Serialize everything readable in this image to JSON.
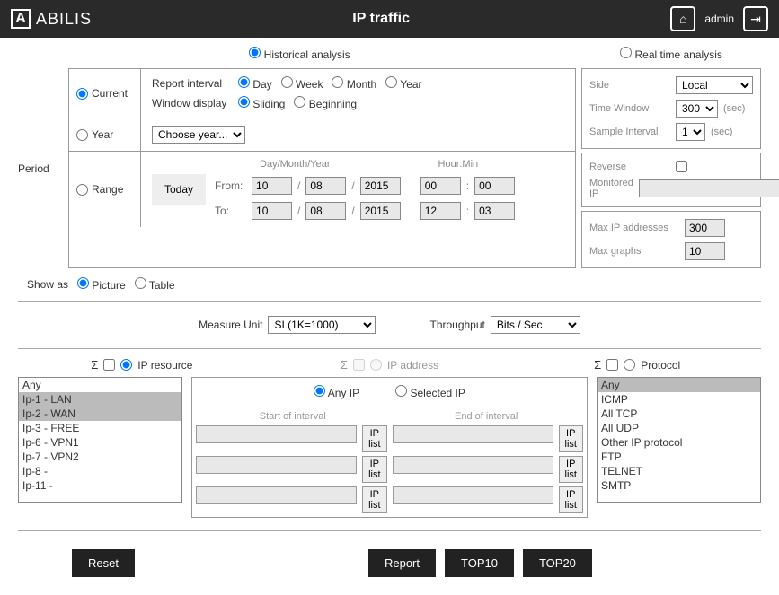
{
  "header": {
    "logo_letter": "A",
    "logo_text": "ABILIS",
    "title": "IP traffic",
    "user": "admin"
  },
  "analysis": {
    "historical": "Historical analysis",
    "realtime": "Real time analysis"
  },
  "period": {
    "label": "Period",
    "current": {
      "label": "Current"
    },
    "report_interval": {
      "label": "Report interval",
      "options": [
        "Day",
        "Week",
        "Month",
        "Year"
      ]
    },
    "window_display": {
      "label": "Window display",
      "options": [
        "Sliding",
        "Beginning"
      ]
    },
    "year": {
      "label": "Year",
      "placeholder": "Choose year..."
    },
    "range": {
      "label": "Range",
      "today": "Today",
      "dmy_header": "Day/Month/Year",
      "hm_header": "Hour:Min",
      "from": "From:",
      "to": "To:",
      "from_d": "10",
      "from_m": "08",
      "from_y": "2015",
      "from_h": "00",
      "from_min": "00",
      "to_d": "10",
      "to_m": "08",
      "to_y": "2015",
      "to_h": "12",
      "to_min": "03"
    }
  },
  "side": {
    "side_lbl": "Side",
    "side_val": "Local",
    "tw_lbl": "Time Window",
    "tw_val": "300",
    "sec": "(sec)",
    "si_lbl": "Sample Interval",
    "si_val": "1",
    "reverse_lbl": "Reverse",
    "monip_lbl": "Monitored IP",
    "maxip_lbl": "Max IP addresses",
    "maxip_val": "300",
    "maxg_lbl": "Max graphs",
    "maxg_val": "10"
  },
  "showas": {
    "label": "Show as",
    "picture": "Picture",
    "table": "Table"
  },
  "measure": {
    "mu_lbl": "Measure Unit",
    "mu_val": "SI (1K=1000)",
    "tp_lbl": "Throughput",
    "tp_val": "Bits / Sec"
  },
  "triple": {
    "ipres": "IP resource",
    "ipaddr": "IP address",
    "proto": "Protocol",
    "sigma": "Σ",
    "anyip": "Any IP",
    "selip": "Selected IP",
    "start_int": "Start of interval",
    "end_int": "End of interval",
    "iplist": "IP list",
    "res_items": [
      "Any",
      "Ip-1  - LAN",
      "Ip-2  - WAN",
      "Ip-3  - FREE",
      "Ip-6  - VPN1",
      "Ip-7  - VPN2",
      "Ip-8  -",
      "Ip-11  -"
    ],
    "res_selected": [
      1,
      2
    ],
    "proto_items": [
      "Any",
      "ICMP",
      "All TCP",
      "All UDP",
      "Other IP protocol",
      "FTP",
      "TELNET",
      "SMTP"
    ],
    "proto_selected": [
      0
    ]
  },
  "buttons": {
    "reset": "Reset",
    "report": "Report",
    "top10": "TOP10",
    "top20": "TOP20"
  }
}
